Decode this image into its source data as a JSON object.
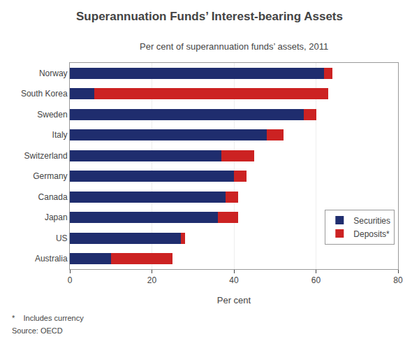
{
  "chart_data": {
    "type": "bar",
    "orientation": "horizontal",
    "stacked": true,
    "title": "Superannuation Funds’ Interest-bearing Assets",
    "subtitle": "Per cent of superannuation funds’ assets, 2011",
    "categories": [
      "Norway",
      "South Korea",
      "Sweden",
      "Italy",
      "Switzerland",
      "Germany",
      "Canada",
      "Japan",
      "US",
      "Australia"
    ],
    "series": [
      {
        "name": "Securities",
        "color": "#1f2d6e",
        "values": [
          62,
          6,
          57,
          48,
          37,
          40,
          38,
          36,
          27,
          10
        ]
      },
      {
        "name": "Deposits*",
        "color": "#cc2222",
        "values": [
          2,
          57,
          3,
          4,
          8,
          3,
          3,
          5,
          1,
          15
        ]
      }
    ],
    "xlabel": "Per cent",
    "xlim": [
      0,
      80
    ],
    "xticks": [
      0,
      20,
      40,
      60,
      80
    ],
    "grid": true,
    "legend": "lower right",
    "annotations": [
      "*    Includes currency",
      "Source: OECD"
    ]
  }
}
